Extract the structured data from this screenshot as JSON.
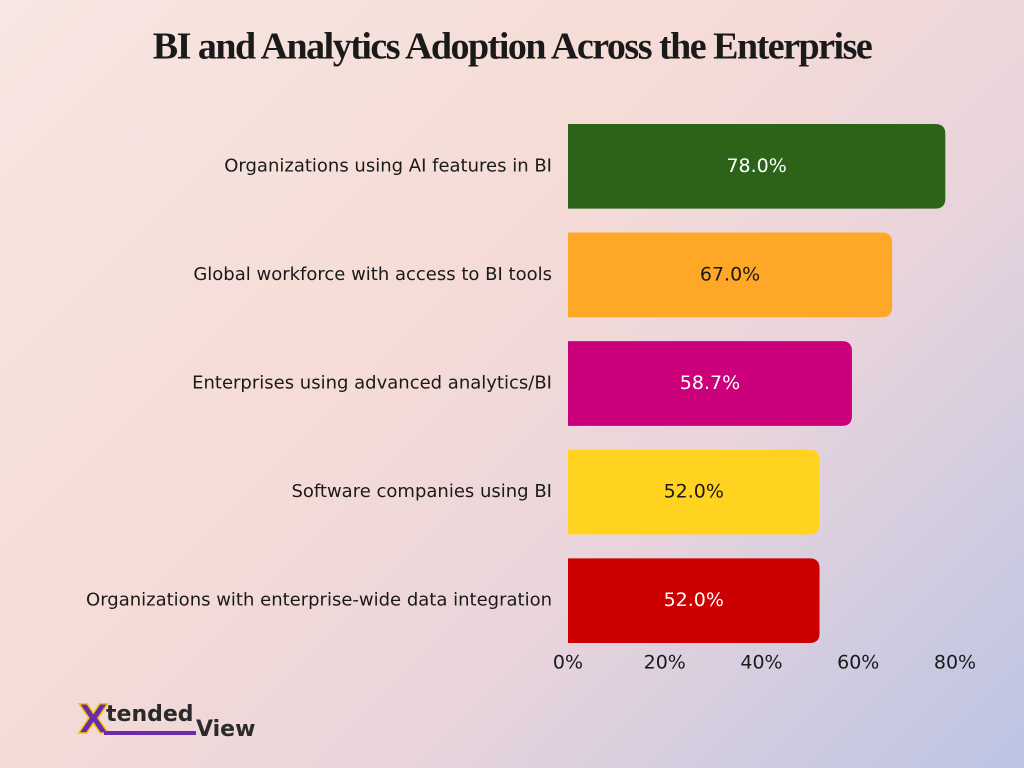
{
  "chart_data": {
    "type": "barh",
    "title": "BI and Analytics Adoption Across the Enterprise",
    "categories": [
      "Organizations using AI features in BI",
      "Global workforce with access to BI tools",
      "Enterprises using advanced analytics/BI",
      "Software companies using BI",
      "Organizations with enterprise-wide data integration"
    ],
    "values": [
      78,
      67,
      58.7,
      52,
      52
    ],
    "value_labels": [
      "78.0%",
      "67.0%",
      "58.7%",
      "52.0%",
      "52.0%"
    ],
    "colors": [
      "#2d6319",
      "#ffa726",
      "#cc007a",
      "#ffd320",
      "#cc0000"
    ],
    "value_label_colors": [
      "#ffffff",
      "#1a1a1a",
      "#ffffff",
      "#1a1a1a",
      "#ffffff"
    ],
    "xlim": [
      0,
      80
    ],
    "xticks": [
      {
        "value": 0,
        "label": "0%"
      },
      {
        "value": 20,
        "label": "20%"
      },
      {
        "value": 40,
        "label": "40%"
      },
      {
        "value": 60,
        "label": "60%"
      },
      {
        "value": 80,
        "label": "80%"
      }
    ],
    "grid": false
  },
  "logo": {
    "mark": "X",
    "first": "tended",
    "second": "View"
  }
}
